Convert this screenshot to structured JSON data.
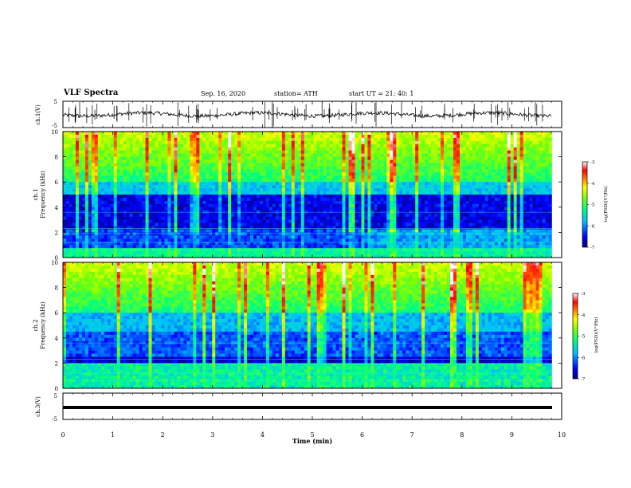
{
  "header": {
    "title": "VLF Spectra",
    "date": "Sep. 16, 2020",
    "station": "station= ATH",
    "start_ut": "start  UT  =   21: 40: 1"
  },
  "chart_data": [
    {
      "type": "line",
      "panel": "ch1-waveform",
      "ylabel": "ch.1(V)",
      "ylim": [
        -5,
        5
      ],
      "ytick_labels": [
        "5",
        "-5"
      ],
      "xlim": [
        0,
        10
      ],
      "series_color": "#000000"
    },
    {
      "type": "heatmap",
      "panel": "ch1-spectrogram",
      "ylabel": "ch.1\nFrequency (kHz)",
      "ylabel_top": "ch.1",
      "ylabel_bottom": "Frequency (kHz)",
      "ylim": [
        0,
        10
      ],
      "ytick_labels": [
        "10",
        "8",
        "6",
        "4",
        "2",
        "0"
      ],
      "xlim": [
        0,
        9.8
      ],
      "colorbar": {
        "label": "log(PSD)(V²/Hz)",
        "range": [
          -7,
          -3
        ],
        "tick_labels": [
          "-3",
          "-4",
          "-5",
          "-6",
          "-7"
        ],
        "colors": [
          "#00007f",
          "#0000ff",
          "#00bfff",
          "#00ff80",
          "#80ff00",
          "#ffff00",
          "#ff8000",
          "#ff0000",
          "#ffffff"
        ]
      }
    },
    {
      "type": "heatmap",
      "panel": "ch2-spectrogram",
      "ylabel_top": "ch.2",
      "ylabel_bottom": "Frequency (kHz)",
      "ylim": [
        0,
        10
      ],
      "ytick_labels": [
        "10",
        "8",
        "6",
        "4",
        "2",
        "0"
      ],
      "xlim": [
        0,
        9.8
      ],
      "colorbar": {
        "label": "log(PSD)(V²/Hz)",
        "range": [
          -7,
          -3
        ],
        "tick_labels": [
          "-3",
          "-4",
          "-5",
          "-6",
          "-7"
        ],
        "colors": [
          "#00007f",
          "#0000ff",
          "#00bfff",
          "#00ff80",
          "#80ff00",
          "#ffff00",
          "#ff8000",
          "#ff0000",
          "#ffffff"
        ]
      }
    },
    {
      "type": "line",
      "panel": "ch3-waveform",
      "ylabel": "ch.3(V)",
      "ylim": [
        -5,
        5
      ],
      "ytick_labels": [
        "5",
        "-5"
      ],
      "xlim": [
        0,
        10
      ],
      "level": 0,
      "series_color": "#000000"
    }
  ],
  "xaxis": {
    "label": "Time  (min)",
    "tick_labels": [
      "0",
      "1",
      "2",
      "3",
      "4",
      "5",
      "6",
      "7",
      "8",
      "9",
      "10"
    ],
    "range": [
      0,
      10
    ]
  }
}
